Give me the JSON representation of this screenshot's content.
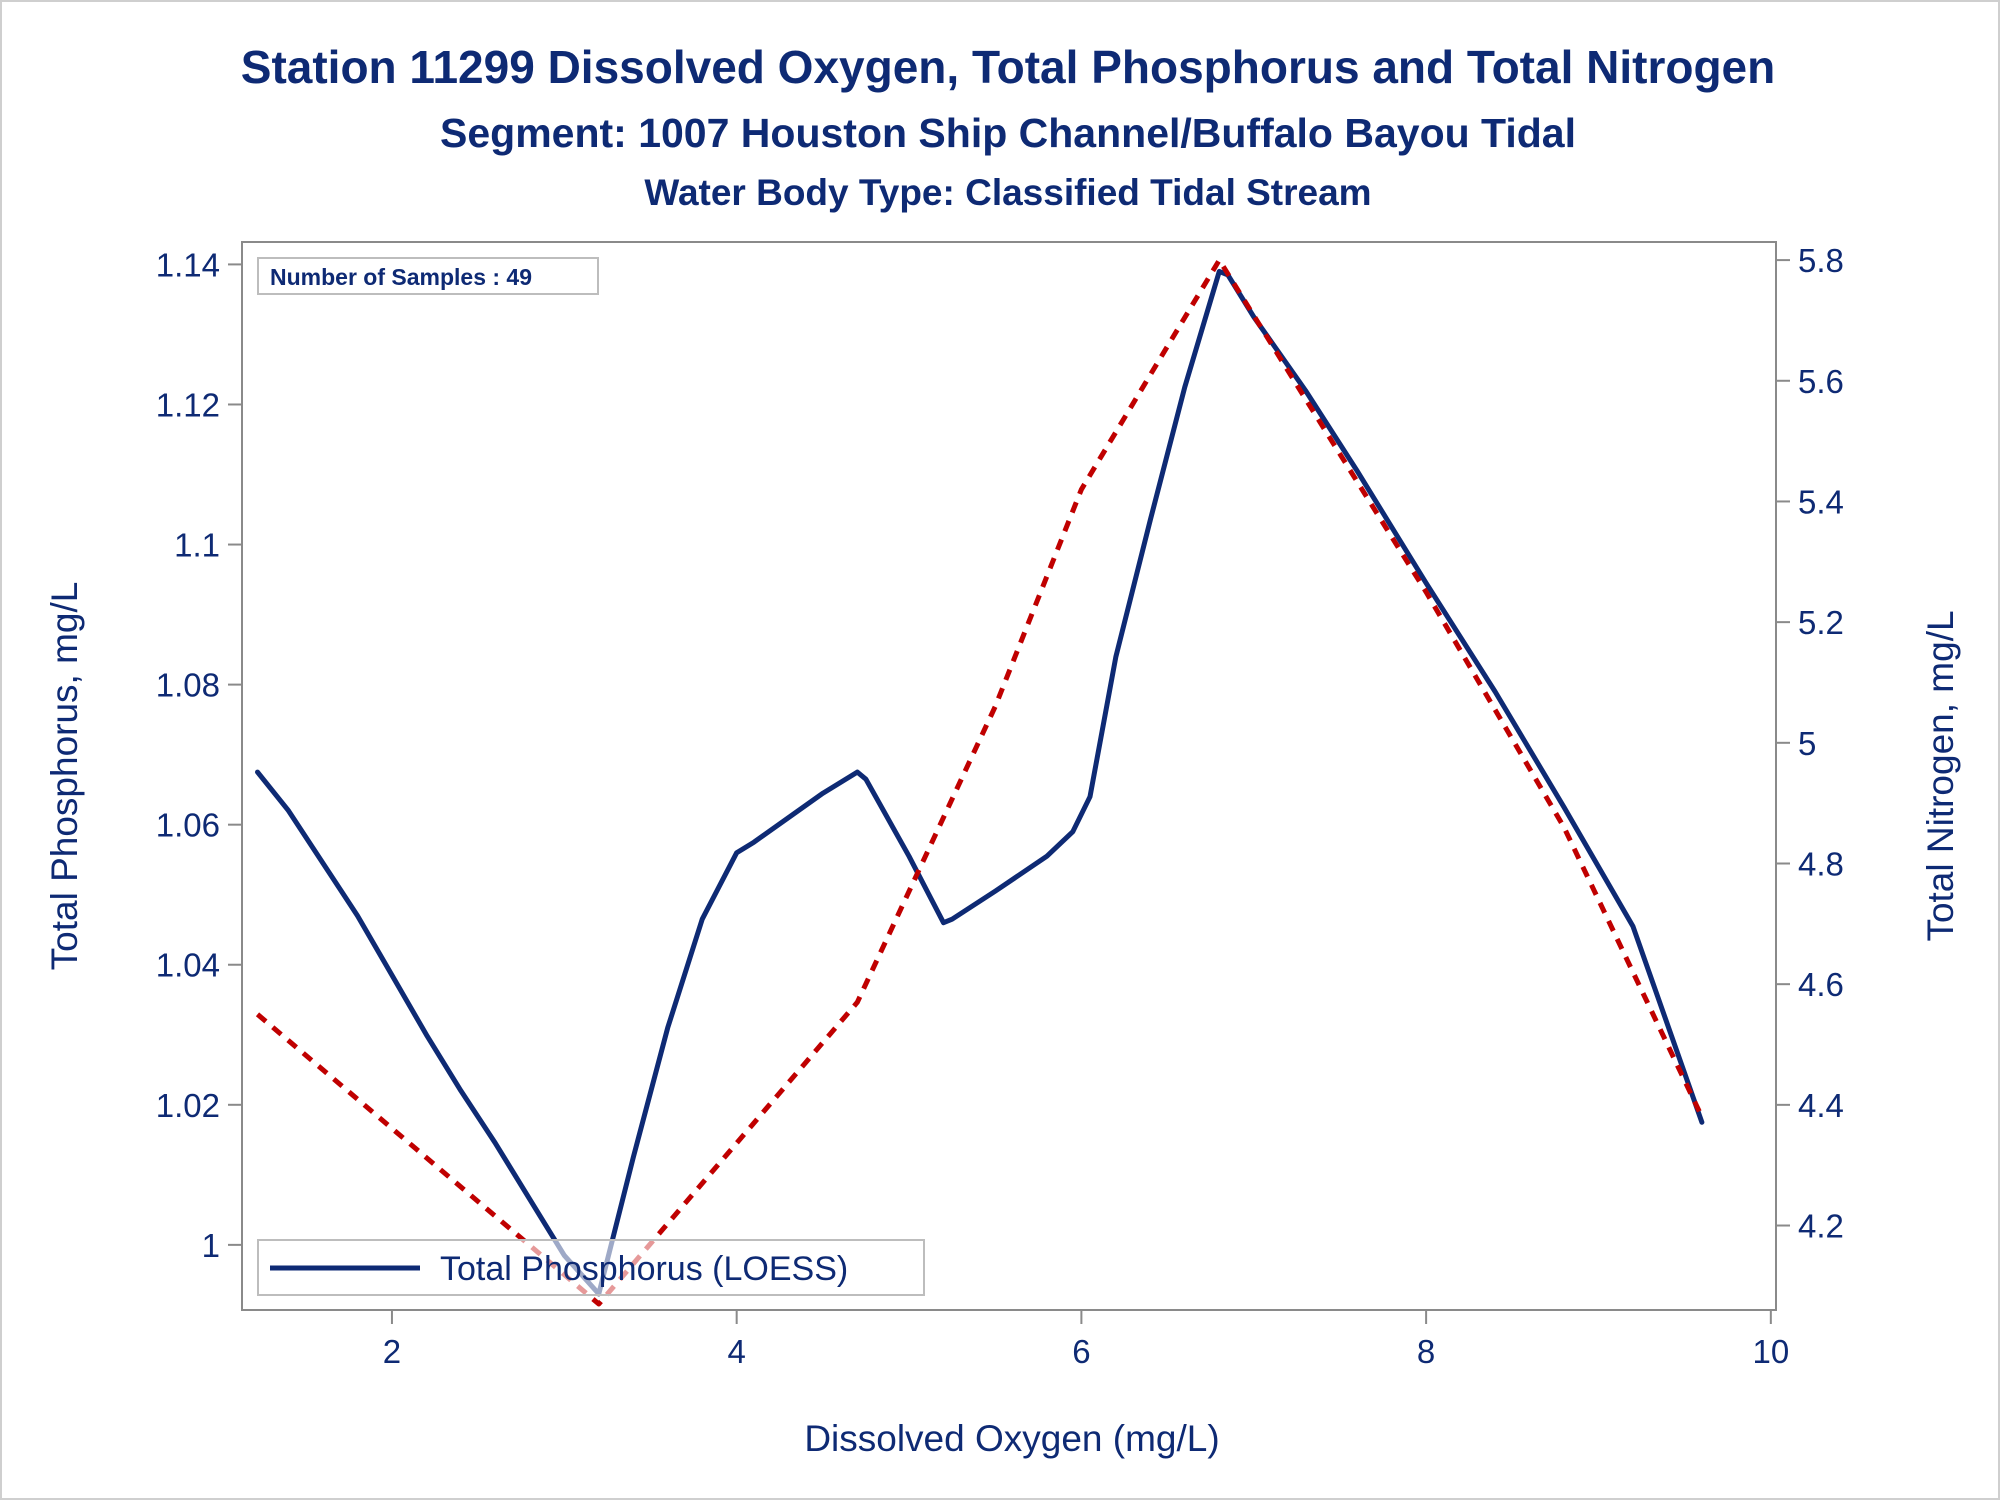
{
  "chart_data": {
    "type": "line",
    "title": "Station 11299  Dissolved Oxygen, Total Phosphorus and Total Nitrogen",
    "subtitle": "Segment: 1007  Houston Ship Channel/Buffalo Bayou Tidal",
    "subtitle2": "Water Body Type: Classified Tidal Stream",
    "xlabel": "Dissolved Oxygen (mg/L)",
    "ylabel": "Total Phosphorus, mg/L",
    "y2label": "Total Nitrogen, mg/L",
    "xlim": [
      1.13,
      10.03
    ],
    "ylim": [
      0.9907,
      1.1432
    ],
    "y2lim": [
      4.06,
      5.83
    ],
    "x_ticks": [
      "2",
      "4",
      "6",
      "8",
      "10"
    ],
    "y_ticks": [
      "1",
      "1.02",
      "1.04",
      "1.06",
      "1.08",
      "1.1",
      "1.12",
      "1.14"
    ],
    "y2_ticks": [
      "4.2",
      "4.4",
      "4.6",
      "4.8",
      "5",
      "5.2",
      "5.4",
      "5.6",
      "5.8"
    ],
    "inset_text": "Number of Samples : 49",
    "legend_position": "bottom-left",
    "grid": false,
    "series": [
      {
        "name": "Total Phosphorus (LOESS)",
        "axis": "left",
        "style": "solid",
        "color": "#0e2a74",
        "x": [
          1.22,
          1.4,
          1.6,
          1.8,
          2.0,
          2.2,
          2.4,
          2.6,
          2.8,
          3.0,
          3.2,
          3.4,
          3.6,
          3.8,
          4.0,
          4.1,
          4.3,
          4.5,
          4.7,
          4.75,
          5.0,
          5.2,
          5.25,
          5.5,
          5.8,
          5.95,
          6.05,
          6.2,
          6.4,
          6.6,
          6.8,
          6.85,
          7.0,
          7.3,
          7.6,
          8.0,
          8.4,
          8.8,
          9.2,
          9.6
        ],
        "y": [
          1.0675,
          1.062,
          1.0545,
          1.047,
          1.0385,
          1.03,
          1.022,
          1.0145,
          1.0065,
          0.9985,
          0.993,
          1.0125,
          1.031,
          1.0465,
          1.056,
          1.0575,
          1.061,
          1.0645,
          1.0675,
          1.0665,
          1.0555,
          1.046,
          1.0465,
          1.0505,
          1.0555,
          1.059,
          1.064,
          1.084,
          1.1035,
          1.1225,
          1.139,
          1.1385,
          1.1325,
          1.122,
          1.1105,
          1.0945,
          1.079,
          1.0625,
          1.0455,
          1.0175
        ]
      },
      {
        "name": "Total Nitrogen",
        "axis": "right",
        "style": "dashed",
        "color": "#c00000",
        "x": [
          1.22,
          3.2,
          4.7,
          5.5,
          6.0,
          6.8,
          7.3,
          8.0,
          8.8,
          9.6
        ],
        "y": [
          4.55,
          4.07,
          4.57,
          5.06,
          5.42,
          5.8,
          5.57,
          5.25,
          4.86,
          4.38
        ]
      }
    ]
  }
}
